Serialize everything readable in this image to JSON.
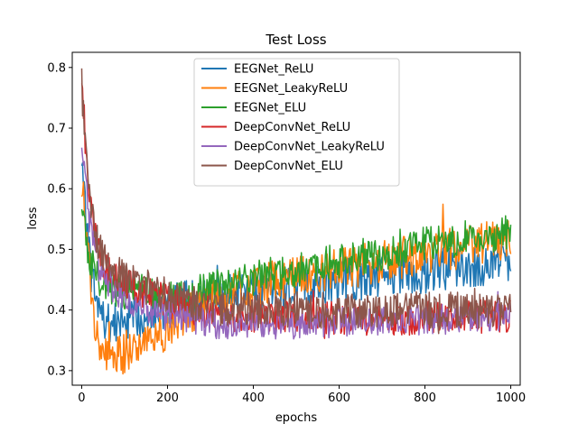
{
  "chart_data": {
    "type": "line",
    "title": "Test Loss",
    "xlabel": "epochs",
    "ylabel": "loss",
    "xlim": [
      -22,
      1022
    ],
    "ylim": [
      0.276,
      0.825
    ],
    "xticks": [
      0,
      200,
      400,
      600,
      800,
      1000
    ],
    "yticks": [
      0.3,
      0.4,
      0.5,
      0.6,
      0.7,
      0.8
    ],
    "legend_position": "top-center",
    "grid": false,
    "series": [
      {
        "name": "EEGNet_ReLU",
        "color": "#1f77b4",
        "x": [
          0,
          10,
          20,
          30,
          40,
          50,
          60,
          70,
          80,
          90,
          100,
          120,
          140,
          160,
          180,
          200,
          220,
          240,
          260,
          280,
          300,
          340,
          380,
          420,
          460,
          500,
          540,
          580,
          620,
          660,
          700,
          740,
          780,
          820,
          860,
          900,
          940,
          980,
          1000
        ],
        "y": [
          0.66,
          0.55,
          0.47,
          0.43,
          0.4,
          0.385,
          0.38,
          0.375,
          0.378,
          0.38,
          0.383,
          0.385,
          0.39,
          0.395,
          0.4,
          0.405,
          0.41,
          0.415,
          0.415,
          0.42,
          0.42,
          0.425,
          0.425,
          0.43,
          0.435,
          0.44,
          0.44,
          0.445,
          0.45,
          0.45,
          0.455,
          0.46,
          0.46,
          0.465,
          0.47,
          0.47,
          0.475,
          0.48,
          0.48
        ]
      },
      {
        "name": "EEGNet_LeakyReLU",
        "color": "#ff7f0e",
        "x": [
          0,
          10,
          20,
          30,
          40,
          50,
          60,
          70,
          80,
          90,
          100,
          120,
          140,
          160,
          180,
          200,
          220,
          240,
          260,
          280,
          300,
          340,
          380,
          420,
          460,
          500,
          540,
          580,
          620,
          660,
          700,
          740,
          780,
          820,
          860,
          900,
          940,
          980,
          1000
        ],
        "y": [
          0.62,
          0.52,
          0.45,
          0.39,
          0.35,
          0.33,
          0.32,
          0.318,
          0.32,
          0.325,
          0.33,
          0.34,
          0.35,
          0.355,
          0.36,
          0.37,
          0.38,
          0.39,
          0.4,
          0.41,
          0.415,
          0.425,
          0.435,
          0.44,
          0.45,
          0.455,
          0.46,
          0.465,
          0.47,
          0.475,
          0.48,
          0.485,
          0.49,
          0.495,
          0.5,
          0.505,
          0.51,
          0.515,
          0.515
        ]
      },
      {
        "name": "EEGNet_ELU",
        "color": "#2ca02c",
        "x": [
          0,
          10,
          20,
          30,
          40,
          50,
          60,
          70,
          80,
          90,
          100,
          120,
          140,
          160,
          180,
          200,
          220,
          240,
          260,
          280,
          300,
          340,
          380,
          420,
          460,
          500,
          540,
          580,
          620,
          660,
          700,
          740,
          780,
          820,
          860,
          900,
          940,
          980,
          1000
        ],
        "y": [
          0.58,
          0.52,
          0.48,
          0.46,
          0.45,
          0.445,
          0.44,
          0.438,
          0.435,
          0.432,
          0.43,
          0.428,
          0.425,
          0.422,
          0.42,
          0.42,
          0.42,
          0.422,
          0.425,
          0.43,
          0.435,
          0.44,
          0.45,
          0.455,
          0.46,
          0.465,
          0.47,
          0.48,
          0.485,
          0.49,
          0.495,
          0.5,
          0.505,
          0.51,
          0.515,
          0.52,
          0.525,
          0.525,
          0.53
        ]
      },
      {
        "name": "DeepConvNet_ReLU",
        "color": "#d62728",
        "x": [
          0,
          10,
          20,
          30,
          40,
          50,
          60,
          70,
          80,
          90,
          100,
          120,
          140,
          160,
          180,
          200,
          220,
          240,
          260,
          280,
          300,
          340,
          380,
          420,
          460,
          500,
          540,
          580,
          620,
          660,
          700,
          740,
          780,
          820,
          860,
          900,
          940,
          980,
          1000
        ],
        "y": [
          0.79,
          0.66,
          0.57,
          0.52,
          0.5,
          0.48,
          0.47,
          0.46,
          0.455,
          0.45,
          0.445,
          0.44,
          0.43,
          0.425,
          0.42,
          0.415,
          0.41,
          0.405,
          0.4,
          0.398,
          0.395,
          0.393,
          0.39,
          0.39,
          0.388,
          0.388,
          0.387,
          0.387,
          0.386,
          0.386,
          0.386,
          0.386,
          0.386,
          0.387,
          0.388,
          0.389,
          0.39,
          0.392,
          0.39
        ]
      },
      {
        "name": "DeepConvNet_LeakyReLU",
        "color": "#9467bd",
        "x": [
          0,
          10,
          20,
          30,
          40,
          50,
          60,
          70,
          80,
          90,
          100,
          120,
          140,
          160,
          180,
          200,
          220,
          240,
          260,
          280,
          300,
          340,
          380,
          420,
          460,
          500,
          540,
          580,
          620,
          660,
          700,
          740,
          780,
          820,
          860,
          900,
          940,
          980,
          1000
        ],
        "y": [
          0.69,
          0.6,
          0.54,
          0.5,
          0.47,
          0.455,
          0.45,
          0.44,
          0.43,
          0.425,
          0.42,
          0.41,
          0.405,
          0.4,
          0.395,
          0.39,
          0.387,
          0.385,
          0.382,
          0.38,
          0.378,
          0.376,
          0.375,
          0.375,
          0.376,
          0.377,
          0.378,
          0.379,
          0.38,
          0.38,
          0.381,
          0.382,
          0.383,
          0.384,
          0.385,
          0.387,
          0.389,
          0.39,
          0.39
        ]
      },
      {
        "name": "DeepConvNet_ELU",
        "color": "#8c564b",
        "x": [
          0,
          10,
          20,
          30,
          40,
          50,
          60,
          70,
          80,
          90,
          100,
          120,
          140,
          160,
          180,
          200,
          220,
          240,
          260,
          280,
          300,
          340,
          380,
          420,
          460,
          500,
          540,
          580,
          620,
          660,
          700,
          740,
          780,
          820,
          860,
          900,
          940,
          980,
          1000
        ],
        "y": [
          0.77,
          0.66,
          0.58,
          0.53,
          0.5,
          0.485,
          0.475,
          0.47,
          0.465,
          0.46,
          0.455,
          0.45,
          0.44,
          0.435,
          0.43,
          0.425,
          0.42,
          0.415,
          0.41,
          0.408,
          0.405,
          0.403,
          0.4,
          0.4,
          0.4,
          0.4,
          0.4,
          0.4,
          0.4,
          0.4,
          0.4,
          0.4,
          0.4,
          0.4,
          0.4,
          0.4,
          0.4,
          0.4,
          0.4
        ]
      }
    ]
  }
}
